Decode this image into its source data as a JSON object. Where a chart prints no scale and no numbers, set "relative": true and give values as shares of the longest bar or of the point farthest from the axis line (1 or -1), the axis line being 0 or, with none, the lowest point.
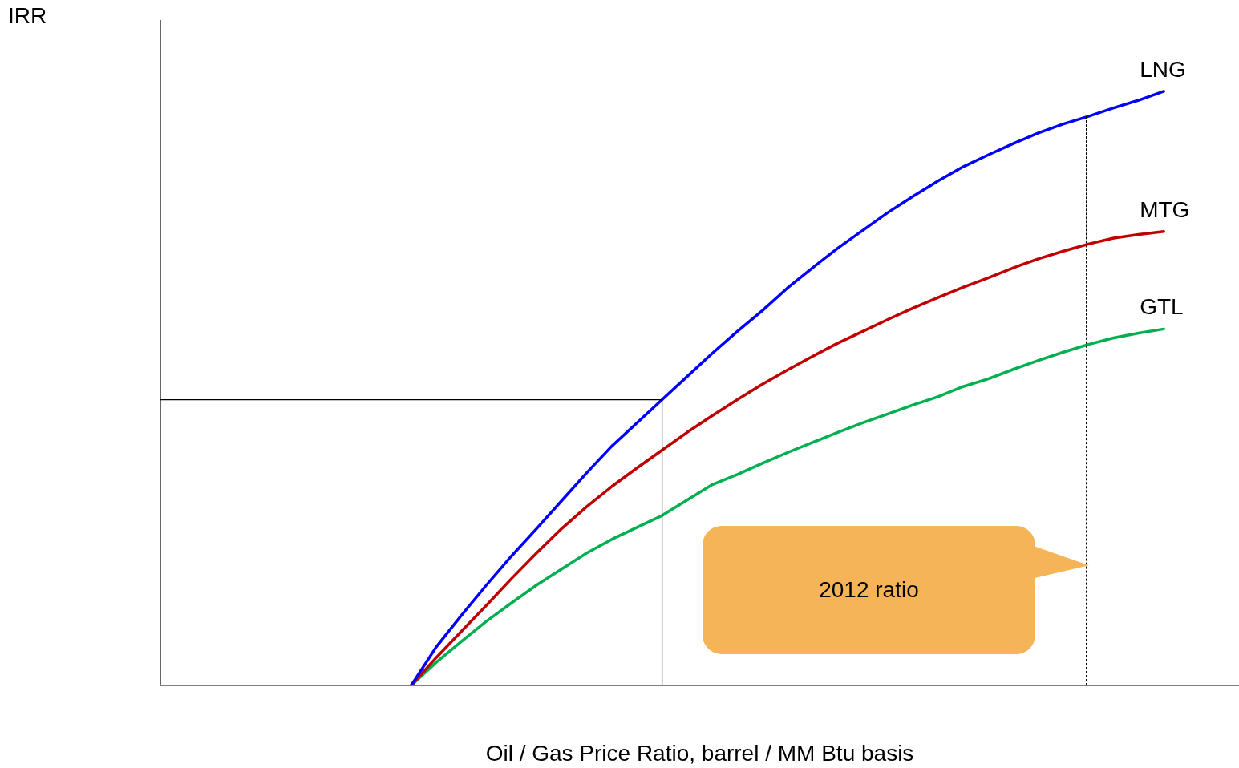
{
  "chart_data": {
    "type": "line",
    "relative": true,
    "xlabel": "Oil / Gas Price Ratio, barrel / MM Btu basis",
    "categories": [
      null,
      null,
      null,
      null,
      null,
      null,
      null,
      null,
      null,
      null,
      null,
      null,
      null,
      null,
      null,
      null,
      null,
      null,
      null,
      null,
      null,
      null,
      null,
      null,
      null,
      null,
      null,
      null,
      null,
      null,
      null,
      null,
      null,
      null,
      null,
      null,
      null,
      null,
      null,
      null,
      null,
      null,
      null,
      null
    ],
    "series": [
      {
        "name": "LNG",
        "color": "#0000ff",
        "values": [
          null,
          null,
          null,
          null,
          null,
          null,
          null,
          null,
          null,
          null,
          0,
          0.065,
          0.118,
          0.169,
          0.218,
          0.264,
          0.311,
          0.358,
          0.403,
          0.442,
          0.481,
          0.52,
          0.559,
          0.596,
          0.631,
          0.669,
          0.703,
          0.736,
          0.766,
          0.796,
          0.823,
          0.849,
          0.873,
          0.893,
          0.912,
          0.93,
          0.945,
          0.958,
          0.972,
          0.985,
          1,
          null,
          null,
          null
        ]
      },
      {
        "name": "MTG",
        "color": "#c00000",
        "values": [
          null,
          null,
          null,
          null,
          null,
          null,
          null,
          null,
          null,
          null,
          0,
          0.047,
          0.091,
          0.135,
          0.18,
          0.223,
          0.264,
          0.301,
          0.335,
          0.366,
          0.396,
          0.426,
          0.454,
          0.481,
          0.507,
          0.531,
          0.554,
          0.576,
          0.596,
          0.616,
          0.635,
          0.653,
          0.67,
          0.686,
          0.703,
          0.718,
          0.731,
          0.743,
          0.753,
          0.759,
          0.764,
          null,
          null,
          null
        ]
      },
      {
        "name": "GTL",
        "color": "#00b050",
        "values": [
          null,
          null,
          null,
          null,
          null,
          null,
          null,
          null,
          null,
          null,
          0,
          0.039,
          0.074,
          0.108,
          0.139,
          0.169,
          0.196,
          0.223,
          0.246,
          0.266,
          0.286,
          0.312,
          0.338,
          0.355,
          0.374,
          0.392,
          0.409,
          0.426,
          0.442,
          0.457,
          0.472,
          0.486,
          0.503,
          0.516,
          0.532,
          0.547,
          0.561,
          0.574,
          0.585,
          0.593,
          0.6,
          null,
          null,
          null
        ]
      }
    ],
    "ref_lines": [
      {
        "axis": "y",
        "value": 0.481,
        "color": "#000000"
      }
    ],
    "annotations": [
      "IRR",
      "2012 ratio"
    ],
    "legend": false,
    "marker": "none",
    "line_style": "solid"
  }
}
